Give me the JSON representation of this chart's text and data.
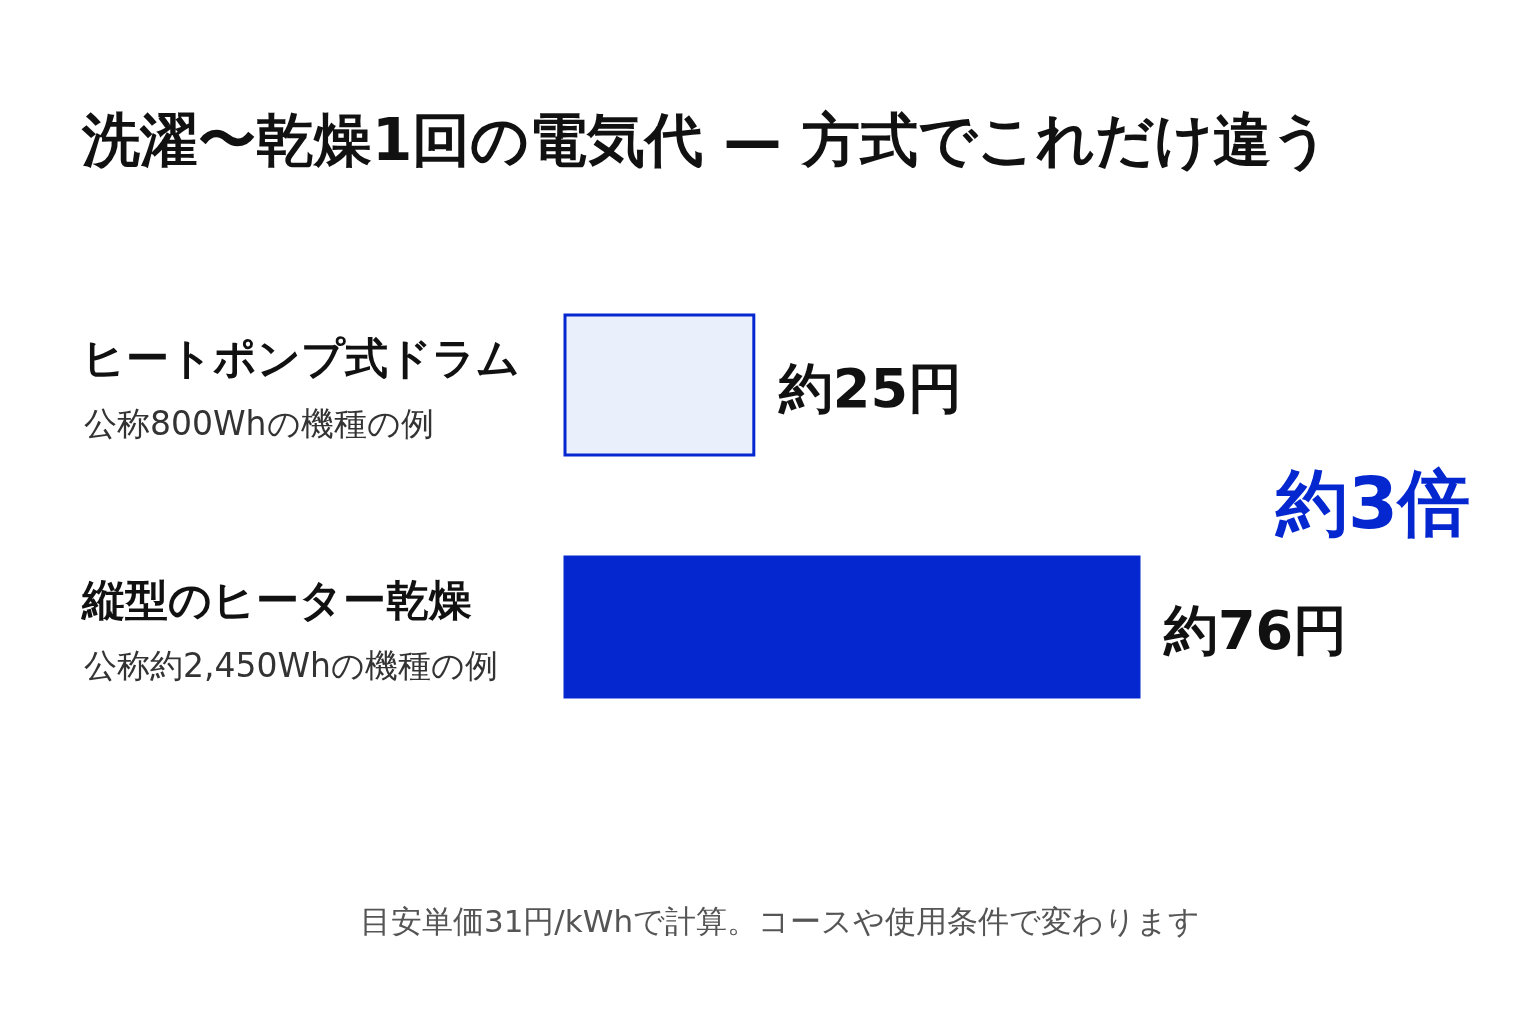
{
  "chart_data": {
    "type": "bar",
    "orientation": "horizontal",
    "title": "洗濯〜乾燥1回の電気代 — 方式でこれだけ違う",
    "categories": [
      "ヒートポンプ式ドラム",
      "縦型のヒーター乾燥"
    ],
    "values": [
      25,
      76
    ],
    "value_labels": [
      "約25円",
      "約76円"
    ],
    "colors": [
      "#eaf0fb",
      "#0427d0"
    ],
    "annotations": [
      "公称800Whの機種の例",
      "公称約2,450Whの機種の例",
      "約3倍",
      "目安単価31円/kWhで計算。コースや使用条件で変わります"
    ]
  }
}
